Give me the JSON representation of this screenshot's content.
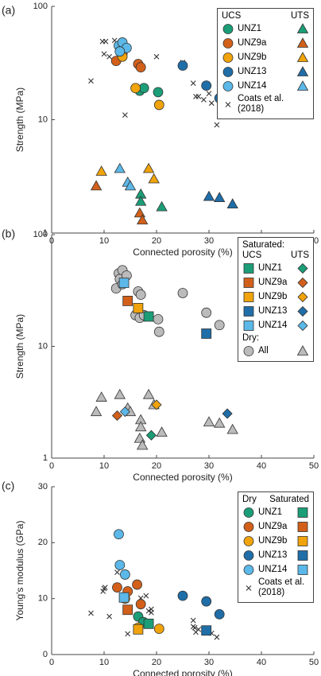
{
  "chart_data": [
    {
      "type": "scatter",
      "panel_label": "(a)",
      "x_label": "Connected porosity (%)",
      "y_label": "Strength (MPa)",
      "xlim": [
        0,
        50
      ],
      "xticks": [
        0,
        10,
        20,
        30,
        40,
        50
      ],
      "ylim": [
        1,
        100
      ],
      "yticks": [
        1,
        10,
        100
      ],
      "y_scale": "log",
      "legend_loc": "upper right",
      "groups": [
        {
          "label": "UCS",
          "marker": "circle"
        },
        {
          "label": "UTS",
          "marker": "triangle"
        }
      ],
      "series": [
        {
          "name": "UNZ1",
          "color": "#1b9e77",
          "data": [
            {
              "x": [
                16.8,
                17.6,
                20.3
              ],
              "values": [
                18,
                19,
                17.5
              ]
            },
            {
              "x": [
                17,
                17,
                21
              ],
              "values": [
                2.2,
                1.9,
                1.7
              ]
            }
          ]
        },
        {
          "name": "UNZ9a",
          "color": "#d2601a",
          "data": [
            {
              "x": [
                12.3,
                13.5,
                16.5,
                17
              ],
              "values": [
                33,
                38,
                31,
                29
              ]
            },
            {
              "x": [
                8.5,
                16.8,
                17.3
              ],
              "values": [
                2.6,
                1.5,
                1.3
              ]
            }
          ]
        },
        {
          "name": "UNZ9b",
          "color": "#f0a30a",
          "data": [
            {
              "x": [
                13.5,
                16,
                20.5
              ],
              "values": [
                36,
                19,
                13.5
              ]
            },
            {
              "x": [
                9.5,
                18.5,
                19.5
              ],
              "values": [
                3.5,
                3.7,
                3.0
              ]
            }
          ]
        },
        {
          "name": "UNZ13",
          "color": "#1f6ea8",
          "data": [
            {
              "x": [
                25,
                29.5,
                32
              ],
              "values": [
                30,
                20,
                15.5
              ]
            },
            {
              "x": [
                30,
                32,
                34.5
              ],
              "values": [
                2.1,
                2.05,
                1.8
              ]
            }
          ]
        },
        {
          "name": "UNZ14",
          "color": "#5bb8e8",
          "data": [
            {
              "x": [
                12.8,
                13.5,
                14.3,
                13
              ],
              "values": [
                45,
                48,
                43,
                40
              ]
            },
            {
              "x": [
                13,
                14.5,
                15
              ],
              "values": [
                3.7,
                2.8,
                2.6
              ]
            }
          ]
        },
        {
          "name": "Coats et al. (2018)",
          "color": "#333333",
          "marker": "x",
          "data": [
            {
              "x": [
                7.5,
                9.7,
                10.3,
                10,
                11,
                12,
                14,
                20,
                25,
                27,
                28,
                29,
                27.5,
                30.5,
                31.5,
                32,
                30
              ],
              "values": [
                22,
                49,
                49,
                38,
                36,
                50,
                11,
                36,
                32,
                21,
                16,
                15,
                16,
                14,
                9,
                21,
                17
              ]
            }
          ]
        }
      ]
    },
    {
      "type": "scatter",
      "panel_label": "(b)",
      "x_label": "Connected porosity (%)",
      "y_label": "Strength (MPa)",
      "xlim": [
        0,
        50
      ],
      "xticks": [
        0,
        10,
        20,
        30,
        40,
        50
      ],
      "ylim": [
        1,
        100
      ],
      "yticks": [
        1,
        10,
        100
      ],
      "y_scale": "log",
      "legend_loc": "upper right",
      "legend_title": "Saturated:",
      "groups": [
        {
          "label": "UCS",
          "marker": "square"
        },
        {
          "label": "UTS",
          "marker": "diamond"
        }
      ],
      "series": [
        {
          "name": "UNZ1",
          "color": "#1b9e77",
          "data": [
            {
              "x": [
                18.5
              ],
              "values": [
                18.5
              ]
            },
            {
              "x": [
                19
              ],
              "values": [
                1.6
              ]
            }
          ]
        },
        {
          "name": "UNZ9a",
          "color": "#d2601a",
          "data": [
            {
              "x": [
                14.5
              ],
              "values": [
                25.5
              ]
            },
            {
              "x": [
                12.5
              ],
              "values": [
                2.4
              ]
            }
          ]
        },
        {
          "name": "UNZ9b",
          "color": "#f0a30a",
          "data": [
            {
              "x": [
                16.5
              ],
              "values": [
                22
              ]
            },
            {
              "x": [
                20
              ],
              "values": [
                3.0
              ]
            }
          ]
        },
        {
          "name": "UNZ13",
          "color": "#1f6ea8",
          "data": [
            {
              "x": [
                29.5
              ],
              "values": [
                13
              ]
            },
            {
              "x": [
                33.5
              ],
              "values": [
                2.5
              ]
            }
          ]
        },
        {
          "name": "UNZ14",
          "color": "#5bb8e8",
          "data": [
            {
              "x": [
                13.8
              ],
              "values": [
                37
              ]
            },
            {
              "x": [
                14
              ],
              "values": [
                2.6
              ]
            }
          ]
        },
        {
          "name": "All",
          "legend_title": "Dry:",
          "color": "#bbbbbb",
          "markers": [
            "circle",
            "triangle"
          ],
          "data": [
            {
              "x": [
                12.3,
                12.8,
                13,
                13.5,
                13.5,
                14.3,
                16,
                16.5,
                16.8,
                17,
                17.6,
                20.3,
                20.5,
                25,
                29.5,
                32
              ],
              "values": [
                33,
                45,
                40,
                48,
                36,
                43,
                19,
                31,
                18,
                29,
                19,
                17.5,
                13.5,
                30,
                20,
                15.5
              ]
            },
            {
              "x": [
                8.5,
                9.5,
                13,
                14.5,
                15,
                16.8,
                17,
                17,
                17.3,
                18.5,
                19.5,
                21,
                30,
                32,
                34.5
              ],
              "values": [
                2.6,
                3.5,
                3.7,
                2.8,
                2.6,
                1.5,
                2.2,
                1.9,
                1.3,
                3.7,
                3.0,
                1.7,
                2.1,
                2.05,
                1.8
              ]
            }
          ]
        }
      ]
    },
    {
      "type": "scatter",
      "panel_label": "(c)",
      "x_label": "Connected porosity (%)",
      "y_label": "Young's modulus (GPa)",
      "xlim": [
        0,
        50
      ],
      "xticks": [
        0,
        10,
        20,
        30,
        40,
        50
      ],
      "ylim": [
        0,
        30
      ],
      "yticks": [
        0,
        10,
        20,
        30
      ],
      "y_scale": "linear",
      "legend_loc": "upper right",
      "groups": [
        {
          "label": "Dry",
          "marker": "circle"
        },
        {
          "label": "Saturated",
          "marker": "square"
        }
      ],
      "series": [
        {
          "name": "UNZ1",
          "color": "#1b9e77",
          "data": [
            {
              "x": [
                16.5,
                17.5
              ],
              "values": [
                6.8,
                5.8
              ]
            },
            {
              "x": [
                18.5
              ],
              "values": [
                5.5
              ]
            }
          ]
        },
        {
          "name": "UNZ9a",
          "color": "#d2601a",
          "data": [
            {
              "x": [
                12.5,
                14.5,
                16.3,
                17
              ],
              "values": [
                12,
                11.3,
                12.5,
                9
              ]
            },
            {
              "x": [
                14.5
              ],
              "values": [
                8
              ]
            }
          ]
        },
        {
          "name": "UNZ9b",
          "color": "#f0a30a",
          "data": [
            {
              "x": [
                14,
                16.5,
                20.5
              ],
              "values": [
                10,
                4.8,
                4.6
              ]
            },
            {
              "x": [
                16.5
              ],
              "values": [
                4.5
              ]
            }
          ]
        },
        {
          "name": "UNZ13",
          "color": "#1f6ea8",
          "data": [
            {
              "x": [
                25,
                29.5,
                32
              ],
              "values": [
                10.5,
                9.5,
                7.2
              ]
            },
            {
              "x": [
                29.5
              ],
              "values": [
                4.3
              ]
            }
          ]
        },
        {
          "name": "UNZ14",
          "color": "#5bb8e8",
          "data": [
            {
              "x": [
                12.8,
                13,
                14
              ],
              "values": [
                21.5,
                16,
                14.3
              ]
            },
            {
              "x": [
                13.8
              ],
              "values": [
                10.2
              ]
            }
          ]
        },
        {
          "name": "Coats et al. (2018)",
          "color": "#333333",
          "marker": "x",
          "data": [
            {
              "x": [
                7.5,
                9.8,
                10,
                10.2,
                11,
                12.5,
                14.5,
                17,
                18,
                18.5,
                19,
                19,
                27,
                27,
                27.3,
                27.5,
                28,
                30.5,
                31.5
              ],
              "values": [
                7.4,
                11.3,
                11.8,
                12,
                6.8,
                14.7,
                3.7,
                10.1,
                10.5,
                7.8,
                8.1,
                7.5,
                6.1,
                5,
                4.8,
                4,
                4.5,
                3.8,
                3.1
              ]
            }
          ]
        }
      ]
    }
  ]
}
